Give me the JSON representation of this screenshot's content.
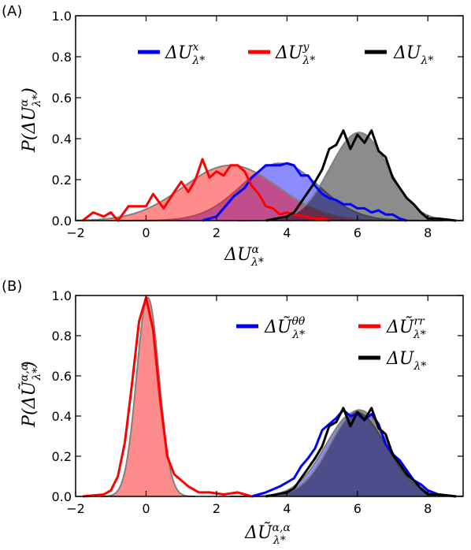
{
  "chart_data": [
    {
      "panel_label": "(A)",
      "type": "area",
      "xlim": [
        -2,
        9
      ],
      "ylim": [
        0,
        1.0
      ],
      "xticks": [
        -2,
        0,
        2,
        4,
        6,
        8
      ],
      "yticks": [
        0.0,
        0.2,
        0.4,
        0.6,
        0.8,
        1.0
      ],
      "xtick_labels": [
        "−2",
        "0",
        "2",
        "4",
        "6",
        "8"
      ],
      "ytick_labels": [
        "0.0",
        "0.2",
        "0.4",
        "0.6",
        "0.8",
        "1.0"
      ],
      "xlabel": {
        "base": "ΔU",
        "sup": "α",
        "sub": "λ*"
      },
      "ylabel": {
        "pre": "P(ΔU",
        "sup": "α",
        "sub": "λ*",
        "post": ")"
      },
      "legend_position": "top",
      "series": [
        {
          "legend": {
            "base": "ΔU",
            "sup": "x",
            "sub": "λ*"
          },
          "color": "#0000ff",
          "fill": {
            "color": "#0000ff",
            "opacity": 0.45
          },
          "fit": {
            "mean": 3.8,
            "sigma": 1.1,
            "peak": 0.28
          },
          "x": [
            1.6,
            2.0,
            2.2,
            2.5,
            2.8,
            3.0,
            3.2,
            3.4,
            3.6,
            3.8,
            4.0,
            4.2,
            4.4,
            4.6,
            4.8,
            5.0,
            5.2,
            5.4,
            5.6,
            5.8,
            6.0,
            6.2,
            6.4,
            6.6,
            6.8,
            7.0,
            7.2,
            7.4
          ],
          "y": [
            0.0,
            0.02,
            0.06,
            0.12,
            0.16,
            0.21,
            0.24,
            0.27,
            0.27,
            0.27,
            0.28,
            0.27,
            0.22,
            0.22,
            0.17,
            0.13,
            0.11,
            0.1,
            0.08,
            0.08,
            0.06,
            0.06,
            0.04,
            0.05,
            0.03,
            0.03,
            0.01,
            0.0
          ]
        },
        {
          "legend": {
            "base": "ΔU",
            "sup": "y",
            "sub": "λ*"
          },
          "color": "#ff0000",
          "fill": {
            "color": "#ff0000",
            "opacity": 0.45
          },
          "fit": {
            "mean": 2.4,
            "sigma": 1.35,
            "peak": 0.27
          },
          "x": [
            -1.8,
            -1.5,
            -1.2,
            -1.0,
            -0.8,
            -0.5,
            -0.2,
            0.0,
            0.2,
            0.5,
            0.8,
            1.0,
            1.2,
            1.4,
            1.6,
            1.8,
            2.0,
            2.2,
            2.4,
            2.6,
            2.8,
            3.0,
            3.2,
            3.4,
            3.6,
            3.8,
            4.0,
            4.2,
            4.5,
            4.8,
            5.0,
            5.2
          ],
          "y": [
            0.0,
            0.04,
            0.02,
            0.04,
            0.0,
            0.07,
            0.07,
            0.07,
            0.13,
            0.06,
            0.14,
            0.19,
            0.14,
            0.2,
            0.3,
            0.21,
            0.24,
            0.22,
            0.27,
            0.27,
            0.24,
            0.17,
            0.13,
            0.07,
            0.06,
            0.03,
            0.04,
            0.03,
            0.02,
            0.01,
            0.01,
            0.0
          ]
        },
        {
          "legend": {
            "base": "ΔU",
            "sup": "",
            "sub": "λ*"
          },
          "color": "#000000",
          "fill": {
            "color": "#000000",
            "opacity": 0.45
          },
          "fit": {
            "mean": 6.05,
            "sigma": 0.82,
            "peak": 0.43
          },
          "x": [
            3.4,
            3.7,
            4.0,
            4.2,
            4.4,
            4.6,
            4.8,
            5.0,
            5.2,
            5.4,
            5.6,
            5.8,
            6.0,
            6.2,
            6.4,
            6.6,
            6.8,
            7.0,
            7.2,
            7.4,
            7.6,
            7.8,
            8.0,
            8.3,
            8.8
          ],
          "y": [
            0.0,
            0.01,
            0.02,
            0.04,
            0.09,
            0.14,
            0.19,
            0.25,
            0.35,
            0.37,
            0.44,
            0.35,
            0.42,
            0.38,
            0.44,
            0.34,
            0.31,
            0.21,
            0.16,
            0.11,
            0.08,
            0.04,
            0.01,
            0.01,
            0.0
          ]
        }
      ]
    },
    {
      "panel_label": "(B)",
      "type": "area",
      "xlim": [
        -2,
        9
      ],
      "ylim": [
        0,
        1.0
      ],
      "xticks": [
        -2,
        0,
        2,
        4,
        6,
        8
      ],
      "yticks": [
        0.0,
        0.2,
        0.4,
        0.6,
        0.8,
        1.0
      ],
      "xtick_labels": [
        "−2",
        "0",
        "2",
        "4",
        "6",
        "8"
      ],
      "ytick_labels": [
        "0.0",
        "0.2",
        "0.4",
        "0.6",
        "0.8",
        "1.0"
      ],
      "xlabel": {
        "base": "ΔŨ",
        "sup": "α,α",
        "sub": "λ*"
      },
      "ylabel": {
        "pre": "P(ΔŨ",
        "sup": "α,α",
        "sub": "λ*",
        "post": ")"
      },
      "legend_position": "right",
      "series": [
        {
          "legend": {
            "base": "ΔŨ",
            "sup": "θθ",
            "sub": "λ*"
          },
          "color": "#0000ff",
          "fill": {
            "color": "#0000ff",
            "opacity": 0.45
          },
          "fit": {
            "mean": 5.95,
            "sigma": 0.85,
            "peak": 0.42
          },
          "x": [
            3.0,
            3.4,
            3.8,
            4.2,
            4.4,
            4.6,
            4.8,
            5.0,
            5.2,
            5.4,
            5.6,
            5.8,
            6.0,
            6.2,
            6.4,
            6.6,
            6.8,
            7.0,
            7.2,
            7.4,
            7.6,
            7.8,
            8.0,
            8.3,
            8.8
          ],
          "y": [
            0.0,
            0.02,
            0.05,
            0.09,
            0.15,
            0.19,
            0.24,
            0.33,
            0.36,
            0.39,
            0.43,
            0.4,
            0.41,
            0.38,
            0.41,
            0.36,
            0.26,
            0.21,
            0.18,
            0.13,
            0.08,
            0.06,
            0.03,
            0.01,
            0.0
          ]
        },
        {
          "legend": {
            "base": "ΔŨ",
            "sup": "rr",
            "sub": "λ*"
          },
          "color": "#ff0000",
          "fill": {
            "color": "#ff0000",
            "opacity": 0.45
          },
          "fit": {
            "mean": 0.05,
            "sigma": 0.32,
            "peak": 0.99
          },
          "x": [
            -1.8,
            -1.2,
            -1.0,
            -0.8,
            -0.6,
            -0.4,
            -0.2,
            0.0,
            0.2,
            0.4,
            0.6,
            0.8,
            1.0,
            1.2,
            1.5,
            1.8,
            2.2,
            2.6,
            2.8,
            3.0
          ],
          "y": [
            0.0,
            0.01,
            0.03,
            0.1,
            0.27,
            0.56,
            0.87,
            0.99,
            0.83,
            0.48,
            0.2,
            0.11,
            0.08,
            0.05,
            0.02,
            0.02,
            0.01,
            0.02,
            0.01,
            0.0
          ]
        },
        {
          "legend": {
            "base": "ΔU",
            "sup": "",
            "sub": "λ*"
          },
          "color": "#000000",
          "fill": {
            "color": "#000000",
            "opacity": 0.45
          },
          "fit": {
            "mean": 6.05,
            "sigma": 0.82,
            "peak": 0.43
          },
          "x": [
            3.4,
            3.7,
            4.0,
            4.2,
            4.4,
            4.6,
            4.8,
            5.0,
            5.2,
            5.4,
            5.6,
            5.8,
            6.0,
            6.2,
            6.4,
            6.6,
            6.8,
            7.0,
            7.2,
            7.4,
            7.6,
            7.8,
            8.0,
            8.3,
            8.8
          ],
          "y": [
            0.0,
            0.01,
            0.02,
            0.04,
            0.09,
            0.14,
            0.19,
            0.25,
            0.35,
            0.37,
            0.44,
            0.35,
            0.42,
            0.38,
            0.44,
            0.34,
            0.31,
            0.21,
            0.16,
            0.11,
            0.08,
            0.04,
            0.01,
            0.01,
            0.0
          ]
        }
      ]
    }
  ]
}
